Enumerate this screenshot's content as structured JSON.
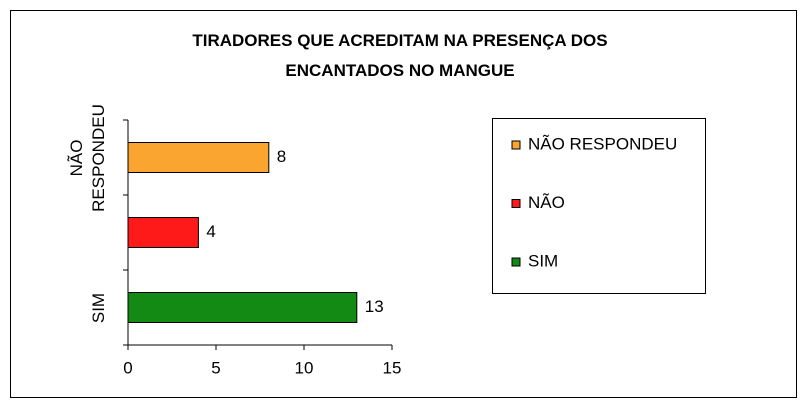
{
  "chart_data": {
    "type": "hbar",
    "title": "TIRADORES QUE ACREDITAM NA PRESENÇA DOS ENCANTADOS NO MANGUE",
    "categories": [
      "SIM",
      null,
      "NÃO RESPONDEU"
    ],
    "values": [
      13,
      4,
      8
    ],
    "colors": [
      "#138a13",
      "#ff1a1a",
      "#f9a530"
    ],
    "legend": [
      "NÃO RESPONDEU",
      "NÃO",
      "SIM"
    ],
    "xlim": [
      0,
      15
    ],
    "xticks": [
      0,
      5,
      10,
      15
    ],
    "grid": false
  }
}
